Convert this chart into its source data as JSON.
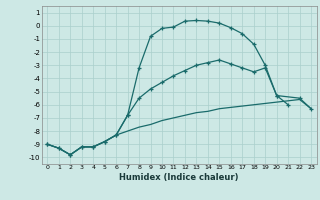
{
  "xlabel": "Humidex (Indice chaleur)",
  "bg_color": "#cde8e5",
  "grid_color": "#aacfcc",
  "line_color": "#1a6b6b",
  "xlim": [
    -0.5,
    23.5
  ],
  "ylim": [
    -10.5,
    1.5
  ],
  "line1_x": [
    0,
    1,
    2,
    3,
    4,
    5,
    6,
    7,
    8,
    9,
    10,
    11,
    12,
    13,
    14,
    15,
    16,
    17,
    18,
    19,
    20,
    21
  ],
  "line1_y": [
    -9.0,
    -9.3,
    -9.8,
    -9.2,
    -9.2,
    -8.8,
    -8.3,
    -6.8,
    -3.2,
    -0.8,
    -0.2,
    -0.1,
    0.35,
    0.4,
    0.35,
    0.2,
    -0.15,
    -0.6,
    -1.4,
    -3.0,
    -5.3,
    -6.0
  ],
  "line2_x": [
    0,
    1,
    2,
    3,
    4,
    5,
    6,
    7,
    8,
    9,
    10,
    11,
    12,
    13,
    14,
    15,
    16,
    17,
    18,
    19,
    20,
    22,
    23
  ],
  "line2_y": [
    -9.0,
    -9.3,
    -9.8,
    -9.2,
    -9.2,
    -8.8,
    -8.3,
    -6.8,
    -5.5,
    -4.8,
    -4.3,
    -3.8,
    -3.4,
    -3.0,
    -2.8,
    -2.6,
    -2.9,
    -3.2,
    -3.5,
    -3.2,
    -5.3,
    -5.5,
    -6.3
  ],
  "line3_x": [
    0,
    1,
    2,
    3,
    4,
    5,
    6,
    7,
    8,
    9,
    10,
    11,
    12,
    13,
    14,
    15,
    16,
    17,
    18,
    19,
    20,
    21,
    22,
    23
  ],
  "line3_y": [
    -9.0,
    -9.3,
    -9.8,
    -9.2,
    -9.2,
    -8.8,
    -8.3,
    -8.0,
    -7.7,
    -7.5,
    -7.2,
    -7.0,
    -6.8,
    -6.6,
    -6.5,
    -6.3,
    -6.2,
    -6.1,
    -6.0,
    -5.9,
    -5.8,
    -5.7,
    -5.6,
    -6.3
  ],
  "ytick_vals": [
    1,
    0,
    -1,
    -2,
    -3,
    -4,
    -5,
    -6,
    -7,
    -8,
    -9,
    -10
  ],
  "xtick_vals": [
    0,
    1,
    2,
    3,
    4,
    5,
    6,
    7,
    8,
    9,
    10,
    11,
    12,
    13,
    14,
    15,
    16,
    17,
    18,
    19,
    20,
    21,
    22,
    23
  ]
}
